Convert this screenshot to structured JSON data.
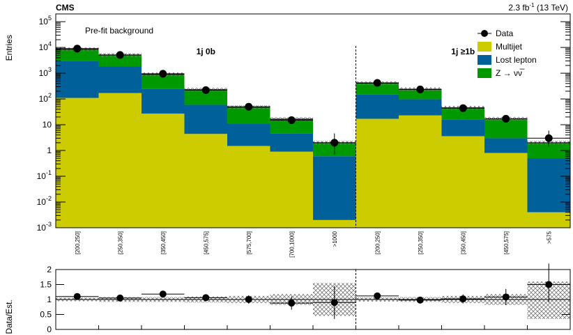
{
  "header": {
    "experiment": "CMS",
    "lumi_value": "2.3 fb",
    "lumi_exp": "-1",
    "lumi_energy": " (13 TeV)"
  },
  "chart_data": [
    {
      "type": "bar",
      "subtype": "stacked-histogram",
      "title": "Pre-fit background",
      "ylabel": "Entries",
      "yscale": "log",
      "ylim": [
        0.001,
        200000
      ],
      "y_tick_labels": [
        "10^-3",
        "10^-2",
        "10^-1",
        "1",
        "10",
        "10^2",
        "10^3",
        "10^4",
        "10^5"
      ],
      "legend_position": "top-right",
      "regions": [
        {
          "label": "1j 0b",
          "bins": [
            0,
            1,
            2,
            3,
            4,
            5,
            6
          ]
        },
        {
          "label": "1j ≥1b",
          "bins": [
            7,
            8,
            9,
            10,
            11
          ]
        }
      ],
      "categories": [
        "[200,250]",
        "[250,350]",
        "[350,450]",
        "[450,575]",
        "[575,700]",
        "[700,1000]",
        ">1000",
        "[200,250]",
        "[250,350]",
        "[350,450]",
        "[450,575]",
        ">575"
      ],
      "series": [
        {
          "name": "Multijet",
          "color": "#cccc00",
          "values": [
            110,
            170,
            27,
            4.4,
            1.5,
            0.9,
            0.002,
            17,
            23,
            3.6,
            0.8,
            0.004
          ]
        },
        {
          "name": "Lost lepton",
          "color": "#00609a",
          "values": [
            2800,
            1650,
            215,
            55,
            9.5,
            3.6,
            0.6,
            130,
            75,
            12,
            2.2,
            0.5
          ]
        },
        {
          "name": "Z → νν̅",
          "color": "#009900",
          "values": [
            5500,
            3300,
            660,
            170,
            37,
            12,
            1.4,
            260,
            140,
            30,
            14,
            1.5
          ]
        }
      ],
      "data": {
        "name": "Data",
        "values": [
          9000,
          5100,
          950,
          220,
          50,
          15,
          2,
          420,
          235,
          44,
          17,
          3
        ],
        "err_low": [
          95,
          71,
          31,
          15,
          7,
          3.9,
          1.3,
          20,
          15,
          6.6,
          4.1,
          1.6
        ],
        "err_high": [
          95,
          71,
          31,
          15,
          7,
          3.9,
          2.6,
          20,
          15,
          6.6,
          4.1,
          2.9
        ]
      }
    },
    {
      "type": "scatter",
      "subtype": "ratio",
      "ylabel": "Data/Est.",
      "ylim": [
        0,
        2
      ],
      "y_ticks": [
        0,
        0.5,
        1,
        1.5,
        2
      ],
      "values": [
        1.1,
        1.05,
        1.18,
        1.06,
        1.0,
        0.88,
        0.9,
        1.12,
        0.98,
        1.02,
        1.08,
        1.5
      ],
      "err_low": [
        0.02,
        0.02,
        0.04,
        0.07,
        0.14,
        0.22,
        0.55,
        0.05,
        0.06,
        0.15,
        0.27,
        0.6
      ],
      "err_high": [
        0.02,
        0.02,
        0.04,
        0.07,
        0.14,
        0.22,
        0.55,
        0.05,
        0.06,
        0.15,
        0.27,
        0.7
      ],
      "band_low": [
        0.94,
        0.92,
        0.92,
        0.9,
        0.88,
        0.82,
        0.45,
        0.93,
        0.92,
        0.88,
        0.82,
        0.35
      ],
      "band_high": [
        1.06,
        1.08,
        1.08,
        1.1,
        1.12,
        1.18,
        1.55,
        1.07,
        1.08,
        1.12,
        1.18,
        1.6
      ]
    }
  ]
}
